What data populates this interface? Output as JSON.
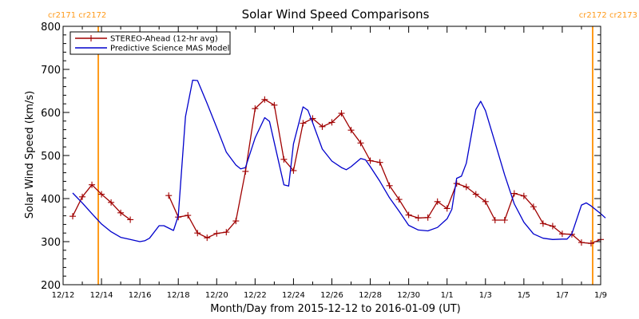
{
  "chart_data": {
    "type": "line",
    "title": "Solar Wind Speed Comparisons",
    "xlabel": "Month/Day from 2015-12-12 to 2016-01-09 (UT)",
    "ylabel": "Solar Wind Speed (km/s)",
    "xlim": [
      "2015-12-12",
      "2016-01-09"
    ],
    "ylim": [
      200,
      800
    ],
    "y_ticks": [
      200,
      300,
      400,
      500,
      600,
      700,
      800
    ],
    "x_tick_labels": [
      "12/12",
      "12/14",
      "12/16",
      "12/18",
      "12/20",
      "12/22",
      "12/24",
      "12/26",
      "12/28",
      "12/30",
      "1/1",
      "1/3",
      "1/5",
      "1/7",
      "1/9"
    ],
    "grid": false,
    "legend_position": "top-left",
    "carrington_markers": [
      {
        "date": "2015-12-13",
        "label": "cr2171 cr2172",
        "color": "#ff9a1a",
        "label_side": "left"
      },
      {
        "date": "2016-01-09",
        "label": "cr2172 cr2173",
        "color": "#ff9a1a",
        "label_side": "right"
      }
    ],
    "series": [
      {
        "name": "STEREO-Ahead (12-hr avg)",
        "color": "#a00000",
        "marker": "plus",
        "segments": [
          [
            [
              "2015-12-12T12:00",
              359
            ],
            [
              "2015-12-13T00:00",
              404
            ],
            [
              "2015-12-13T12:00",
              432
            ],
            [
              "2015-12-14T00:00",
              410
            ],
            [
              "2015-12-14T12:00",
              391
            ],
            [
              "2015-12-15T00:00",
              367
            ],
            [
              "2015-12-15T12:00",
              351
            ]
          ],
          [
            [
              "2015-12-17T12:00",
              407
            ],
            [
              "2015-12-18T00:00",
              357
            ],
            [
              "2015-12-18T12:00",
              361
            ],
            [
              "2015-12-19T00:00",
              320
            ],
            [
              "2015-12-19T12:00",
              309
            ],
            [
              "2015-12-20T00:00",
              319
            ],
            [
              "2015-12-20T12:00",
              322
            ],
            [
              "2015-12-21T00:00",
              348
            ],
            [
              "2015-12-21T12:00",
              463
            ],
            [
              "2015-12-22T00:00",
              609
            ],
            [
              "2015-12-22T12:00",
              630
            ],
            [
              "2015-12-23T00:00",
              617
            ],
            [
              "2015-12-23T12:00",
              491
            ],
            [
              "2015-12-24T00:00",
              465
            ],
            [
              "2015-12-24T12:00",
              575
            ],
            [
              "2015-12-25T00:00",
              586
            ],
            [
              "2015-12-25T12:00",
              567
            ],
            [
              "2015-12-26T00:00",
              577
            ],
            [
              "2015-12-26T12:00",
              598
            ],
            [
              "2015-12-27T00:00",
              559
            ],
            [
              "2015-12-27T12:00",
              529
            ],
            [
              "2015-12-28T00:00",
              488
            ],
            [
              "2015-12-28T12:00",
              484
            ],
            [
              "2015-12-29T00:00",
              430
            ],
            [
              "2015-12-29T12:00",
              398
            ],
            [
              "2015-12-30T00:00",
              362
            ],
            [
              "2015-12-30T12:00",
              355
            ],
            [
              "2015-12-31T00:00",
              356
            ],
            [
              "2015-12-31T12:00",
              393
            ],
            [
              "2016-01-01T00:00",
              377
            ],
            [
              "2016-01-01T12:00",
              435
            ],
            [
              "2016-01-02T00:00",
              427
            ],
            [
              "2016-01-02T12:00",
              410
            ],
            [
              "2016-01-03T00:00",
              393
            ],
            [
              "2016-01-03T12:00",
              350
            ],
            [
              "2016-01-04T00:00",
              350
            ],
            [
              "2016-01-04T12:00",
              412
            ],
            [
              "2016-01-05T00:00",
              406
            ],
            [
              "2016-01-05T12:00",
              381
            ],
            [
              "2016-01-06T00:00",
              342
            ],
            [
              "2016-01-06T12:00",
              336
            ],
            [
              "2016-01-07T00:00",
              318
            ],
            [
              "2016-01-07T12:00",
              317
            ],
            [
              "2016-01-08T00:00",
              298
            ],
            [
              "2016-01-08T12:00",
              296
            ],
            [
              "2016-01-09T00:00",
              305
            ]
          ]
        ]
      },
      {
        "name": "Predictive Science MAS Model",
        "color": "#0000cc",
        "marker": "none",
        "points": [
          [
            "2015-12-12T12:00",
            413
          ],
          [
            "2015-12-13T00:00",
            390
          ],
          [
            "2015-12-13T12:00",
            365
          ],
          [
            "2015-12-14T00:00",
            341
          ],
          [
            "2015-12-14T12:00",
            323
          ],
          [
            "2015-12-15T00:00",
            310
          ],
          [
            "2015-12-15T12:00",
            305
          ],
          [
            "2015-12-16T00:00",
            300
          ],
          [
            "2015-12-16T06:00",
            302
          ],
          [
            "2015-12-16T12:00",
            308
          ],
          [
            "2015-12-17T00:00",
            337
          ],
          [
            "2015-12-17T06:00",
            337
          ],
          [
            "2015-12-17T18:00",
            326
          ],
          [
            "2015-12-18T00:00",
            360
          ],
          [
            "2015-12-18T09:00",
            590
          ],
          [
            "2015-12-18T18:00",
            675
          ],
          [
            "2015-12-19T00:00",
            674
          ],
          [
            "2015-12-19T12:00",
            621
          ],
          [
            "2015-12-20T00:00",
            565
          ],
          [
            "2015-12-20T12:00",
            508
          ],
          [
            "2015-12-21T00:00",
            478
          ],
          [
            "2015-12-21T06:00",
            469
          ],
          [
            "2015-12-21T12:00",
            472
          ],
          [
            "2015-12-22T00:00",
            541
          ],
          [
            "2015-12-22T12:00",
            588
          ],
          [
            "2015-12-22T18:00",
            579
          ],
          [
            "2015-12-23T00:00",
            530
          ],
          [
            "2015-12-23T12:00",
            432
          ],
          [
            "2015-12-23T18:00",
            429
          ],
          [
            "2015-12-24T00:00",
            527
          ],
          [
            "2015-12-24T12:00",
            613
          ],
          [
            "2015-12-24T18:00",
            605
          ],
          [
            "2015-12-25T00:00",
            576
          ],
          [
            "2015-12-25T12:00",
            515
          ],
          [
            "2015-12-26T00:00",
            487
          ],
          [
            "2015-12-26T12:00",
            472
          ],
          [
            "2015-12-26T18:00",
            467
          ],
          [
            "2015-12-27T00:00",
            474
          ],
          [
            "2015-12-27T12:00",
            493
          ],
          [
            "2015-12-27T18:00",
            490
          ],
          [
            "2015-12-28T00:00",
            474
          ],
          [
            "2015-12-28T12:00",
            440
          ],
          [
            "2015-12-29T00:00",
            402
          ],
          [
            "2015-12-29T12:00",
            371
          ],
          [
            "2015-12-30T00:00",
            338
          ],
          [
            "2015-12-30T12:00",
            327
          ],
          [
            "2015-12-31T00:00",
            325
          ],
          [
            "2015-12-31T12:00",
            333
          ],
          [
            "2016-01-01T00:00",
            353
          ],
          [
            "2016-01-01T06:00",
            375
          ],
          [
            "2016-01-01T12:00",
            447
          ],
          [
            "2016-01-01T18:00",
            452
          ],
          [
            "2016-01-02T00:00",
            482
          ],
          [
            "2016-01-02T12:00",
            607
          ],
          [
            "2016-01-02T18:00",
            626
          ],
          [
            "2016-01-03T00:00",
            604
          ],
          [
            "2016-01-03T12:00",
            530
          ],
          [
            "2016-01-04T00:00",
            455
          ],
          [
            "2016-01-04T12:00",
            388
          ],
          [
            "2016-01-05T00:00",
            345
          ],
          [
            "2016-01-05T12:00",
            318
          ],
          [
            "2016-01-06T00:00",
            308
          ],
          [
            "2016-01-06T12:00",
            305
          ],
          [
            "2016-01-07T00:00",
            306
          ],
          [
            "2016-01-07T06:00",
            306
          ],
          [
            "2016-01-07T12:00",
            318
          ],
          [
            "2016-01-08T00:00",
            385
          ],
          [
            "2016-01-08T06:00",
            390
          ],
          [
            "2016-01-08T12:00",
            383
          ],
          [
            "2016-01-09T00:00",
            365
          ],
          [
            "2016-01-09T06:00",
            355
          ]
        ]
      }
    ]
  }
}
